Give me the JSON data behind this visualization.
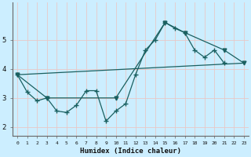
{
  "xlabel": "Humidex (Indice chaleur)",
  "xlim": [
    -0.5,
    23.5
  ],
  "ylim": [
    1.7,
    6.3
  ],
  "xticks": [
    0,
    1,
    2,
    3,
    4,
    5,
    6,
    7,
    8,
    9,
    10,
    11,
    12,
    13,
    14,
    15,
    16,
    17,
    18,
    19,
    20,
    21,
    22,
    23
  ],
  "yticks": [
    2,
    3,
    4,
    5
  ],
  "bg_color": "#cceeff",
  "grid_color_minor": "#e8c8c8",
  "line_color": "#1a6060",
  "line1_x": [
    0,
    1,
    2,
    3,
    4,
    5,
    6,
    7,
    8,
    9,
    10,
    11,
    12,
    13,
    14,
    15,
    16,
    17,
    18,
    19,
    20,
    21
  ],
  "line1_y": [
    3.8,
    3.2,
    2.9,
    3.0,
    2.55,
    2.5,
    2.75,
    3.25,
    3.25,
    2.2,
    2.55,
    2.8,
    3.8,
    4.65,
    5.0,
    5.6,
    5.4,
    5.25,
    4.65,
    4.4,
    4.65,
    4.2
  ],
  "line2_x": [
    0,
    3,
    10,
    15,
    17,
    21,
    23
  ],
  "line2_y": [
    3.8,
    3.0,
    3.0,
    5.6,
    5.25,
    4.65,
    4.2
  ],
  "line3_x": [
    0,
    23
  ],
  "line3_y": [
    3.8,
    4.2
  ]
}
